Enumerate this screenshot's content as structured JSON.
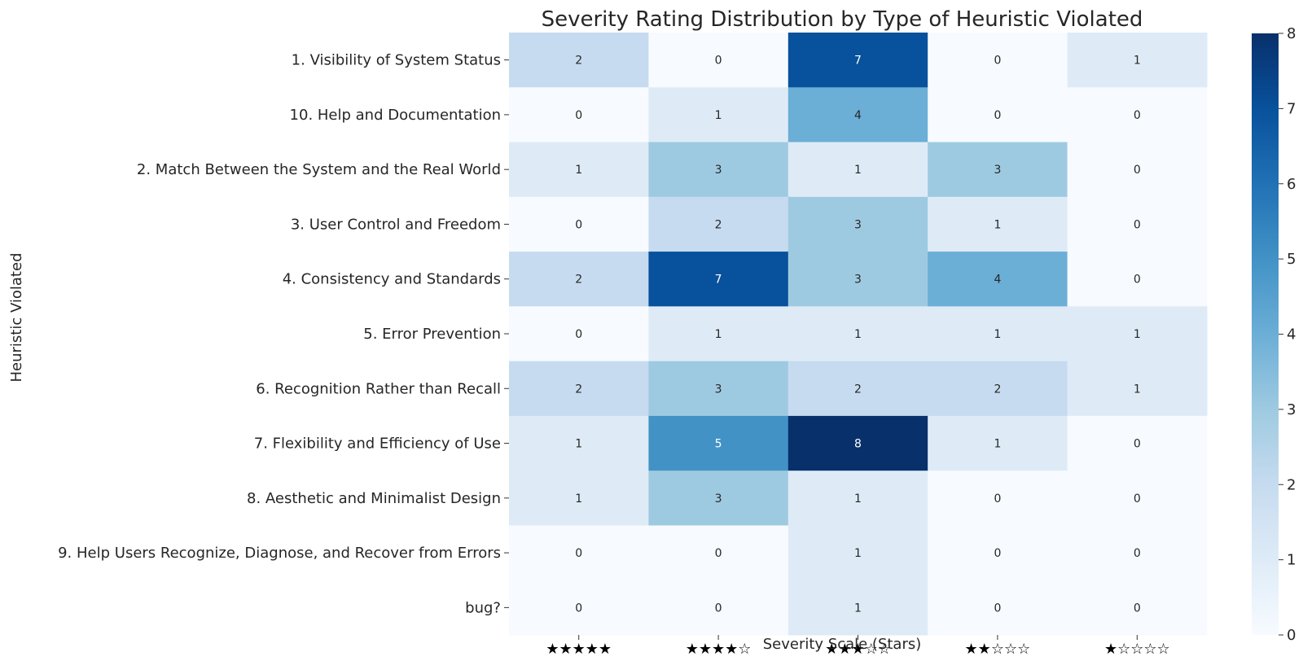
{
  "chart_data": {
    "type": "heatmap",
    "title": "Severity Rating Distribution by Type of Heuristic Violated",
    "xlabel": "Severity Scale (Stars)",
    "ylabel": "Heuristic Violated",
    "x_categories": [
      "★★★★★",
      "★★★★☆",
      "★★★☆☆",
      "★★☆☆☆",
      "★☆☆☆☆"
    ],
    "y_categories": [
      "1. Visibility of System Status",
      "10. Help and Documentation",
      "2. Match Between the System and the Real World",
      "3. User Control and Freedom",
      "4. Consistency and Standards",
      "5. Error Prevention",
      "6. Recognition Rather than Recall",
      "7. Flexibility and Efficiency of Use",
      "8. Aesthetic and Minimalist Design",
      "9. Help Users Recognize, Diagnose, and Recover from Errors",
      "bug?"
    ],
    "values": [
      [
        2,
        0,
        7,
        0,
        1
      ],
      [
        0,
        1,
        4,
        0,
        0
      ],
      [
        1,
        3,
        1,
        3,
        0
      ],
      [
        0,
        2,
        3,
        1,
        0
      ],
      [
        2,
        7,
        3,
        4,
        0
      ],
      [
        0,
        1,
        1,
        1,
        1
      ],
      [
        2,
        3,
        2,
        2,
        1
      ],
      [
        1,
        5,
        8,
        1,
        0
      ],
      [
        1,
        3,
        1,
        0,
        0
      ],
      [
        0,
        0,
        1,
        0,
        0
      ],
      [
        0,
        0,
        1,
        0,
        0
      ]
    ],
    "colorscale": "Blues",
    "colorbar": {
      "min": 0,
      "max": 8,
      "ticks": [
        0,
        1,
        2,
        3,
        4,
        5,
        6,
        7,
        8
      ]
    },
    "annotations": true
  }
}
